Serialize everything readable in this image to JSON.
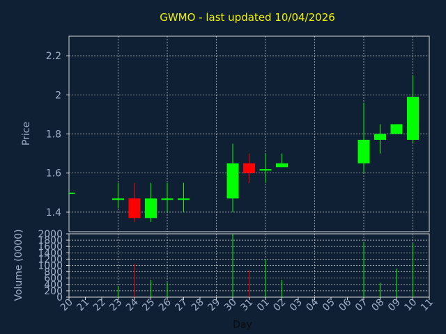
{
  "chart_data": [
    {
      "type": "candlestick",
      "title": "GWMO - last updated 10/04/2026",
      "ylabel": "Price",
      "ylim": [
        1.3,
        2.3
      ],
      "yticks": [
        "1.4",
        "1.6",
        "1.8",
        "2",
        "2.2"
      ],
      "grid": true,
      "categories": [
        "20",
        "21",
        "22",
        "23",
        "24",
        "25",
        "26",
        "27",
        "28",
        "29",
        "30",
        "31",
        "01",
        "02",
        "03",
        "04",
        "05",
        "06",
        "07",
        "08",
        "09",
        "10",
        "11"
      ],
      "candles": [
        {
          "x": "20",
          "open": 1.5,
          "high": 1.5,
          "low": 1.5,
          "close": 1.5
        },
        {
          "x": "23",
          "open": 1.47,
          "high": 1.55,
          "low": 1.42,
          "close": 1.47
        },
        {
          "x": "24",
          "open": 1.47,
          "high": 1.55,
          "low": 1.35,
          "close": 1.37
        },
        {
          "x": "25",
          "open": 1.37,
          "high": 1.55,
          "low": 1.35,
          "close": 1.47
        },
        {
          "x": "26",
          "open": 1.47,
          "high": 1.55,
          "low": 1.4,
          "close": 1.47
        },
        {
          "x": "27",
          "open": 1.47,
          "high": 1.55,
          "low": 1.4,
          "close": 1.47
        },
        {
          "x": "30",
          "open": 1.47,
          "high": 1.75,
          "low": 1.4,
          "close": 1.65
        },
        {
          "x": "31",
          "open": 1.65,
          "high": 1.7,
          "low": 1.55,
          "close": 1.6
        },
        {
          "x": "01",
          "open": 1.62,
          "high": 1.7,
          "low": 1.55,
          "close": 1.62
        },
        {
          "x": "02",
          "open": 1.63,
          "high": 1.7,
          "low": 1.63,
          "close": 1.65
        },
        {
          "x": "07",
          "open": 1.65,
          "high": 1.96,
          "low": 1.6,
          "close": 1.77
        },
        {
          "x": "08",
          "open": 1.77,
          "high": 1.85,
          "low": 1.7,
          "close": 1.8
        },
        {
          "x": "09",
          "open": 1.8,
          "high": 1.85,
          "low": 1.8,
          "close": 1.85
        },
        {
          "x": "10",
          "open": 1.77,
          "high": 2.1,
          "low": 1.75,
          "close": 1.99
        }
      ],
      "colors": {
        "up": "#00ff00",
        "down": "#ff0000"
      }
    },
    {
      "type": "bar",
      "xlabel": "Day",
      "ylabel": "Volume (0000)",
      "ylim": [
        0,
        2000
      ],
      "yticks": [
        "0",
        "200",
        "400",
        "600",
        "800",
        "1000",
        "1200",
        "1400",
        "1600",
        "1800",
        "2000"
      ],
      "categories": [
        "20",
        "21",
        "22",
        "23",
        "24",
        "25",
        "26",
        "27",
        "28",
        "29",
        "30",
        "31",
        "01",
        "02",
        "03",
        "04",
        "05",
        "06",
        "07",
        "08",
        "09",
        "10",
        "11"
      ],
      "values": [
        0,
        0,
        0,
        350,
        1050,
        550,
        450,
        0,
        0,
        0,
        2000,
        850,
        1200,
        550,
        0,
        0,
        0,
        0,
        1750,
        450,
        900,
        1700,
        0
      ],
      "direction": [
        "up",
        "",
        "",
        "up",
        "down",
        "up",
        "up",
        "",
        "",
        "",
        "up",
        "down",
        "up",
        "up",
        "",
        "",
        "",
        "",
        "up",
        "up",
        "up",
        "up",
        ""
      ]
    }
  ],
  "colors": {
    "background": "#0f2035",
    "grid": "#d8d8d8",
    "axis_text": "#9fb2c8",
    "title": "#f2f200"
  }
}
